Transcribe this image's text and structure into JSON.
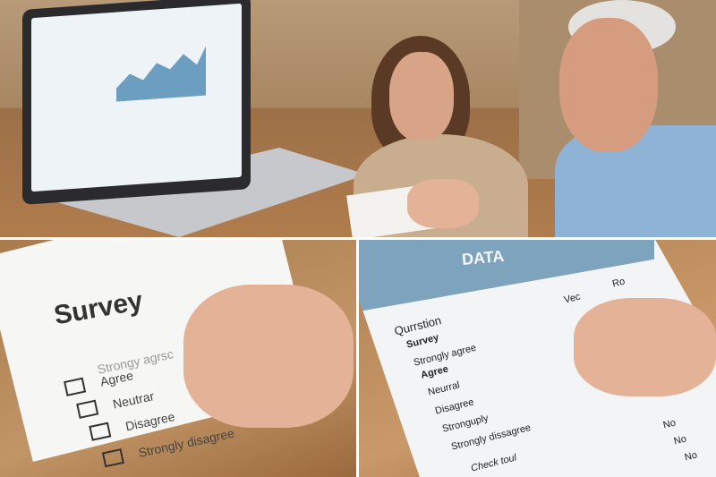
{
  "survey_sheet": {
    "title": "Survey",
    "options": [
      "Strongy agrsc",
      "Agree",
      "Neutrar",
      "Disagree",
      "Strongly disagree"
    ]
  },
  "data_sheet": {
    "title": "DATA",
    "column_headers": [
      "Vec",
      "Ro"
    ],
    "question_label": "Qurrstion",
    "rows": [
      "Survey",
      "Strongly agree",
      "Agree",
      "Neurral",
      "Disagree",
      "Stronguply",
      "Strongly dissagree"
    ],
    "footer": "Check toul",
    "no_cells": [
      "No",
      "No",
      "No"
    ]
  },
  "colors": {
    "banner": "#7ea3bd",
    "chart": "#6b9ec0",
    "table": "#f3f4f5"
  }
}
